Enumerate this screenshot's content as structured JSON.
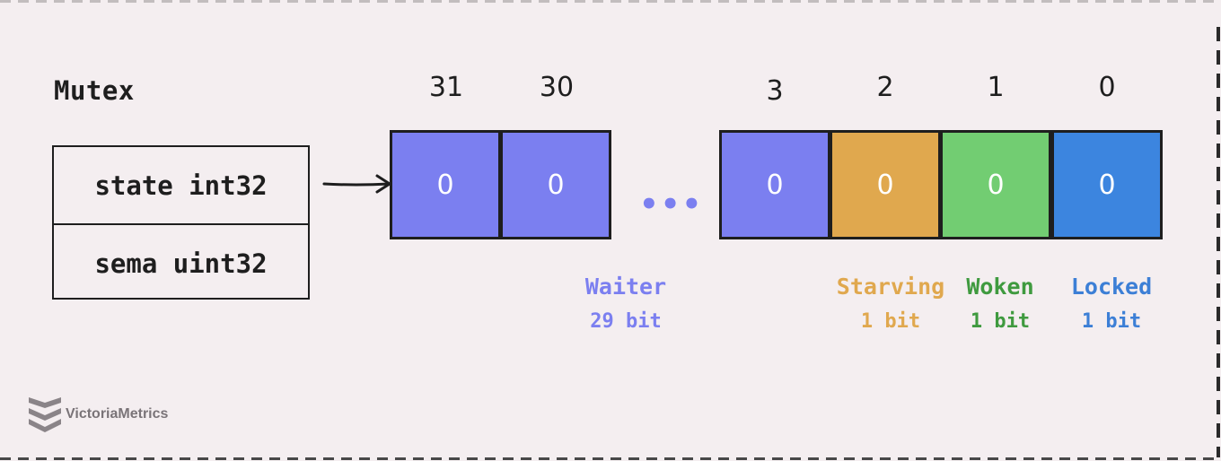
{
  "title": "Mutex",
  "struct": {
    "fields": [
      "state int32",
      "sema uint32"
    ]
  },
  "bit_indices": [
    "31",
    "30",
    "3",
    "2",
    "1",
    "0"
  ],
  "cells": [
    {
      "value": "0",
      "color": "#7b7ff0",
      "group": "waiter"
    },
    {
      "value": "0",
      "color": "#7b7ff0",
      "group": "waiter"
    },
    {
      "value": "0",
      "color": "#7b7ff0",
      "group": "waiter"
    },
    {
      "value": "0",
      "color": "#e0a84e",
      "group": "starving"
    },
    {
      "value": "0",
      "color": "#72cd72",
      "group": "woken"
    },
    {
      "value": "0",
      "color": "#3c85df",
      "group": "locked"
    }
  ],
  "ellipsis": "•••",
  "fields_legend": {
    "waiter": {
      "name": "Waiter",
      "bits": "29 bit",
      "color": "#7b7ff0"
    },
    "starving": {
      "name": "Starving",
      "bits": "1 bit",
      "color": "#e0a84e"
    },
    "woken": {
      "name": "Woken",
      "bits": "1 bit",
      "color": "#3f9a3f"
    },
    "locked": {
      "name": "Locked",
      "bits": "1 bit",
      "color": "#3c7fd6"
    }
  },
  "logo": {
    "text": "VictoriaMetrics"
  }
}
